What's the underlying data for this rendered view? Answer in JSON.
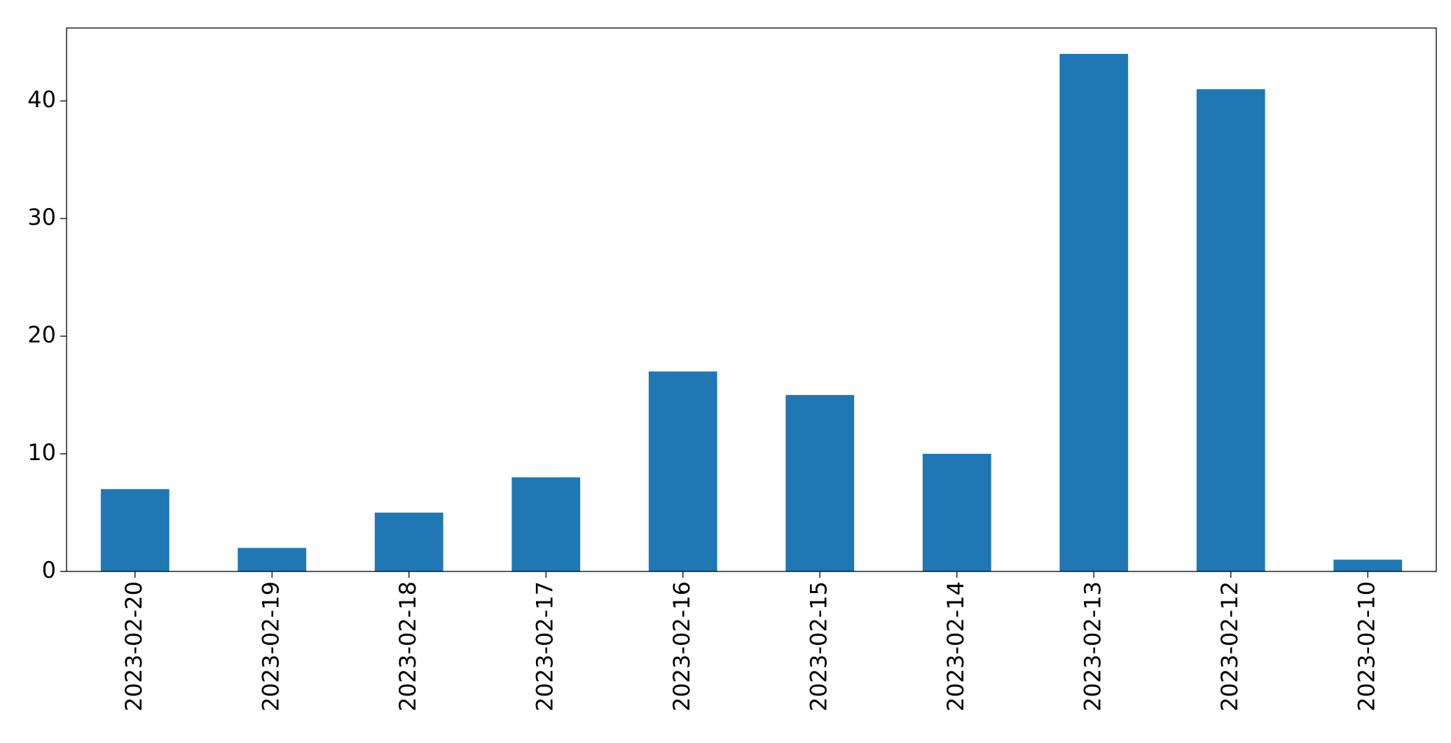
{
  "chart_data": {
    "type": "bar",
    "categories": [
      "2023-02-20",
      "2023-02-19",
      "2023-02-18",
      "2023-02-17",
      "2023-02-16",
      "2023-02-15",
      "2023-02-14",
      "2023-02-13",
      "2023-02-12",
      "2023-02-10"
    ],
    "values": [
      7,
      2,
      5,
      8,
      17,
      15,
      10,
      44,
      41,
      1
    ],
    "color": "#1f77b4",
    "ylim": [
      0,
      46.2
    ],
    "yticks": [
      0,
      10,
      20,
      30,
      40
    ],
    "grid": false
  }
}
